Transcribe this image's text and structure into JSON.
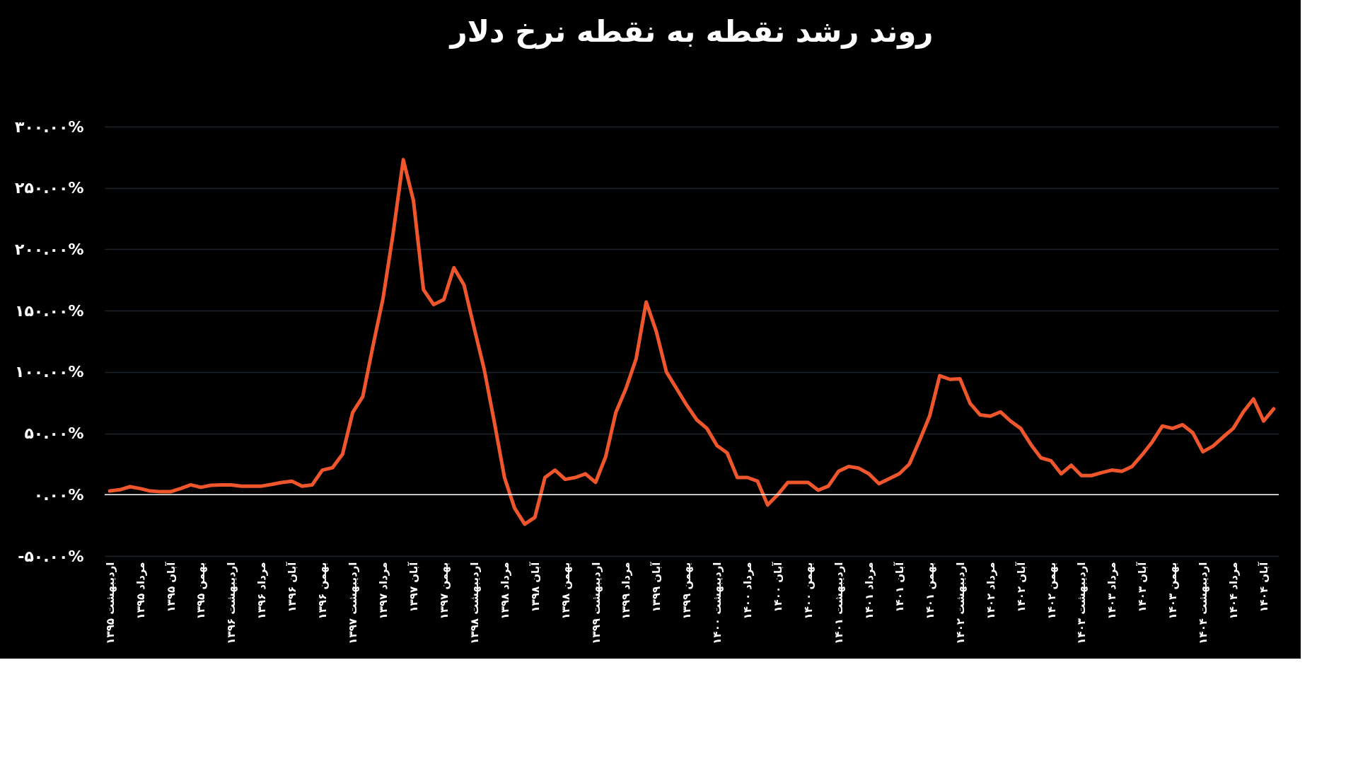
{
  "chart_data": {
    "type": "line",
    "title": "روند رشد نقطه به نقطه نرخ دلار",
    "categories": [
      "اردیبهشت ۱۳۹۵",
      null,
      null,
      "مرداد ۱۳۹۵",
      null,
      null,
      "آبان ۱۳۹۵",
      null,
      null,
      "بهمن ۱۳۹۵",
      null,
      null,
      "اردیبهشت ۱۳۹۶",
      null,
      null,
      "مرداد ۱۳۹۶",
      null,
      null,
      "آبان ۱۳۹۶",
      null,
      null,
      "بهمن ۱۳۹۶",
      null,
      null,
      "اردیبهشت ۱۳۹۷",
      null,
      null,
      "مرداد ۱۳۹۷",
      null,
      null,
      "آبان ۱۳۹۷",
      null,
      null,
      "بهمن ۱۳۹۷",
      null,
      null,
      "اردیبهشت ۱۳۹۸",
      null,
      null,
      "مرداد ۱۳۹۸",
      null,
      null,
      "آبان ۱۳۹۸",
      null,
      null,
      "بهمن ۱۳۹۸",
      null,
      null,
      "اردیبهشت ۱۳۹۹",
      null,
      null,
      "مرداد ۱۳۹۹",
      null,
      null,
      "آبان ۱۳۹۹",
      null,
      null,
      "بهمن ۱۳۹۹",
      null,
      null,
      "اردیبهشت ۱۴۰۰",
      null,
      null,
      "مرداد ۱۴۰۰",
      null,
      null,
      "آبان ۱۴۰۰",
      null,
      null,
      "بهمن ۱۴۰۰",
      null,
      null,
      "اردیبهشت ۱۴۰۱",
      null,
      null,
      "مرداد ۱۴۰۱",
      null,
      null,
      "آبان ۱۴۰۱",
      null,
      null,
      "بهمن ۱۴۰۱",
      null,
      null,
      "اردیبهشت ۱۴۰۲",
      null,
      null,
      "مرداد ۱۴۰۲",
      null,
      null,
      "آبان ۱۴۰۲",
      null,
      null,
      "بهمن ۱۴۰۲",
      null,
      null,
      "اردیبهشت ۱۴۰۳",
      null,
      null,
      "مرداد ۱۴۰۳",
      null,
      null,
      "آبان ۱۴۰۳",
      null,
      null,
      "بهمن ۱۴۰۳",
      null,
      null,
      "اردیبهشت ۱۴۰۴",
      null,
      null,
      "مرداد ۱۴۰۴",
      null,
      null,
      "آبان ۱۴۰۴",
      null
    ],
    "series": [
      {
        "color": "#f0562b",
        "values": [
          3,
          4,
          6.5,
          5,
          3,
          2.4,
          2.4,
          5,
          8,
          6,
          7.7,
          8,
          8,
          7,
          7,
          7,
          8.4,
          10,
          11,
          7,
          8,
          20,
          22,
          33,
          67,
          80,
          121,
          160,
          213,
          273,
          240,
          167,
          155,
          159,
          185,
          171,
          136,
          102,
          59,
          14,
          -11,
          -24,
          -18.5,
          14,
          20,
          12.5,
          14,
          17,
          10,
          31,
          67,
          86.5,
          110.6,
          157,
          133,
          100,
          86.5,
          73,
          61,
          54,
          40,
          34,
          14,
          14,
          11,
          -8.4,
          0,
          10,
          10,
          10,
          3.6,
          7,
          19,
          23,
          21.6,
          17,
          9,
          13,
          17,
          25,
          44,
          64,
          97,
          94,
          94.5,
          74.5,
          65,
          64,
          67.5,
          60,
          54,
          41,
          30,
          27.6,
          17,
          24,
          15.6,
          15.6,
          18,
          20,
          19,
          23,
          32.5,
          43,
          56,
          54,
          57,
          50.5,
          35,
          39.6,
          47,
          54,
          67.5,
          78,
          60,
          70
        ]
      }
    ],
    "ylim": [
      -50,
      300
    ],
    "yticks": [
      {
        "value": -50,
        "label": "-۵۰.۰۰%"
      },
      {
        "value": 0,
        "label": "۰.۰۰%"
      },
      {
        "value": 50,
        "label": "۵۰.۰۰%"
      },
      {
        "value": 100,
        "label": "۱۰۰.۰۰%"
      },
      {
        "value": 150,
        "label": "۱۵۰.۰۰%"
      },
      {
        "value": 200,
        "label": "۲۰۰.۰۰%"
      },
      {
        "value": 250,
        "label": "۲۵۰.۰۰%"
      },
      {
        "value": 300,
        "label": "۳۰۰.۰۰%"
      }
    ],
    "grid": "y",
    "ref_lines": [
      {
        "axis": "y",
        "value": 0,
        "color": "#ffffff"
      }
    ],
    "marker": "none",
    "line_style": "solid"
  }
}
